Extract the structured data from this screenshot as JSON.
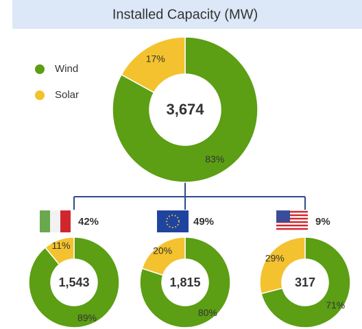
{
  "title": "Installed Capacity (MW)",
  "chart_data": [
    {
      "type": "donut",
      "categories": [
        "Wind",
        "Solar"
      ],
      "values": [
        83,
        17
      ],
      "value_labels": [
        "83%",
        "17%"
      ],
      "colors": [
        "#5c9e14",
        "#f3c22e"
      ],
      "total": {
        "value": 3674,
        "label": "3,674"
      }
    },
    {
      "type": "donut",
      "categories": [
        "Wind",
        "Solar"
      ],
      "values": [
        89,
        11
      ],
      "value_labels": [
        "89%",
        "11%"
      ],
      "colors": [
        "#5c9e14",
        "#f3c22e"
      ],
      "total": {
        "value": 1543,
        "label": "1,543"
      },
      "share": {
        "value": 42,
        "label": "42%"
      }
    },
    {
      "type": "donut",
      "categories": [
        "Wind",
        "Solar"
      ],
      "values": [
        80,
        20
      ],
      "value_labels": [
        "80%",
        "20%"
      ],
      "colors": [
        "#5c9e14",
        "#f3c22e"
      ],
      "total": {
        "value": 1815,
        "label": "1,815"
      },
      "share": {
        "value": 49,
        "label": "49%"
      }
    },
    {
      "type": "donut",
      "categories": [
        "Wind",
        "Solar"
      ],
      "values": [
        71,
        29
      ],
      "value_labels": [
        "71%",
        "29%"
      ],
      "colors": [
        "#5c9e14",
        "#f3c22e"
      ],
      "total": {
        "value": 317,
        "label": "317"
      },
      "share": {
        "value": 9,
        "label": "9%"
      }
    }
  ]
}
